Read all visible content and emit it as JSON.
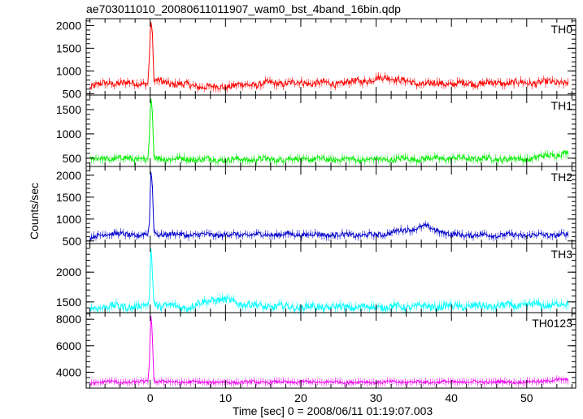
{
  "chart_data": [
    {
      "type": "line",
      "title": "ae703011010_20080611011907_wam0_bst_4band_16bin.qdp",
      "xlabel": "Time [sec] 0 = 2008/06/11 01:19:07.003",
      "ylabel": "Counts/sec",
      "xlim": [
        -8.5,
        56.5
      ],
      "xticks": [
        "0",
        "10",
        "20",
        "30",
        "40",
        "50"
      ],
      "xtick_values": [
        0,
        10,
        20,
        30,
        40,
        50
      ],
      "grid": false,
      "panels": [
        {
          "name": "TH0",
          "color": "#ff0000",
          "ylim": [
            470,
            2150
          ],
          "yticks": [
            "500",
            "1000",
            "1500",
            "2000"
          ],
          "ytick_values": [
            500,
            1000,
            1500,
            2000
          ],
          "baseline": 730,
          "noise": 70,
          "burst_peak": 2100,
          "x": [
            -8.0,
            -6.0,
            -4.0,
            -2.0,
            -0.3,
            -0.05,
            0.05,
            0.15,
            0.3,
            0.5,
            1.0,
            3.0,
            8.0,
            15.0,
            20.0,
            25.0,
            32.0,
            35.0,
            40.0,
            45.0,
            50.0,
            55.5
          ],
          "y": [
            650,
            720,
            740,
            720,
            740,
            1500,
            2100,
            2050,
            1800,
            760,
            780,
            720,
            640,
            720,
            740,
            720,
            860,
            720,
            720,
            730,
            740,
            750
          ]
        },
        {
          "name": "TH1",
          "color": "#00ee00",
          "ylim": [
            330,
            1800
          ],
          "yticks": [
            "500",
            "1000",
            "1500"
          ],
          "ytick_values": [
            500,
            1000,
            1500
          ],
          "baseline": 480,
          "noise": 55,
          "burst_peak": 1750,
          "x": [
            -8.0,
            -6.0,
            -4.0,
            -2.0,
            -0.3,
            -0.05,
            0.05,
            0.15,
            0.3,
            0.5,
            1.0,
            5.0,
            10.0,
            20.0,
            30.0,
            40.0,
            50.0,
            55.5
          ],
          "y": [
            480,
            490,
            500,
            480,
            490,
            1100,
            1750,
            1700,
            1400,
            520,
            500,
            480,
            470,
            480,
            470,
            500,
            480,
            620
          ]
        },
        {
          "name": "TH2",
          "color": "#0000cc",
          "ylim": [
            440,
            2200
          ],
          "yticks": [
            "500",
            "1000",
            "1500",
            "2000"
          ],
          "ytick_values": [
            500,
            1000,
            1500,
            2000
          ],
          "baseline": 640,
          "noise": 55,
          "burst_peak": 2100,
          "x": [
            -8.0,
            -6.0,
            -4.0,
            -2.0,
            -0.3,
            -0.05,
            0.05,
            0.15,
            0.3,
            0.5,
            1.0,
            5.0,
            10.0,
            20.0,
            30.0,
            36.5,
            40.0,
            50.0,
            55.5
          ],
          "y": [
            550,
            680,
            650,
            630,
            660,
            1000,
            2100,
            2050,
            1700,
            700,
            660,
            640,
            640,
            650,
            630,
            830,
            640,
            630,
            640
          ]
        },
        {
          "name": "TH3",
          "color": "#00ffff",
          "ylim": [
            1320,
            2480
          ],
          "yticks": [
            "1500",
            "2000"
          ],
          "ytick_values": [
            1500,
            2000
          ],
          "baseline": 1420,
          "noise": 60,
          "burst_peak": 2420,
          "x": [
            -8.0,
            -6.0,
            -4.0,
            -2.0,
            -0.3,
            -0.05,
            0.05,
            0.15,
            0.3,
            0.5,
            1.0,
            5.0,
            8.5,
            15.0,
            25.0,
            35.0,
            45.0,
            55.5
          ],
          "y": [
            1380,
            1430,
            1420,
            1420,
            1440,
            1600,
            2420,
            2380,
            1950,
            1480,
            1440,
            1410,
            1550,
            1420,
            1410,
            1420,
            1430,
            1460
          ]
        },
        {
          "name": "TH0123",
          "color": "#ee00ee",
          "ylim": [
            2800,
            8500
          ],
          "yticks": [
            "4000",
            "6000",
            "8000"
          ],
          "ytick_values": [
            4000,
            6000,
            8000
          ],
          "baseline": 3250,
          "noise": 110,
          "burst_peak": 8300,
          "x": [
            -8.0,
            -6.0,
            -4.0,
            -2.0,
            -0.3,
            -0.05,
            0.05,
            0.15,
            0.3,
            0.5,
            1.0,
            5.0,
            10.0,
            20.0,
            30.0,
            40.0,
            50.0,
            55.5
          ],
          "y": [
            3150,
            3300,
            3250,
            3240,
            3300,
            5200,
            8300,
            8200,
            6500,
            3350,
            3300,
            3250,
            3240,
            3260,
            3250,
            3270,
            3260,
            3450
          ]
        }
      ]
    }
  ]
}
